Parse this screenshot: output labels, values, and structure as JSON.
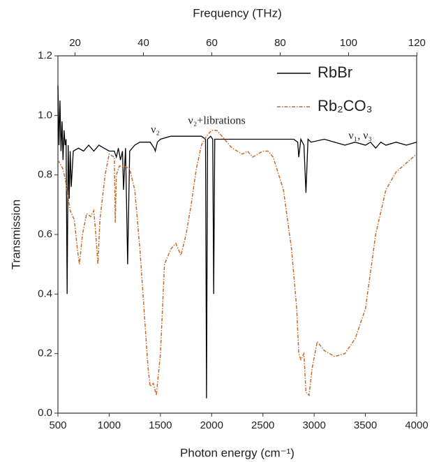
{
  "chart_data": {
    "type": "line",
    "xlabel": "Photon energy (cm⁻¹)",
    "ylabel": "Transmission",
    "x2label": "Frequency (THz)",
    "xlim": [
      500,
      4000
    ],
    "xticks": [
      500,
      1000,
      1500,
      2000,
      2500,
      3000,
      3500,
      4000
    ],
    "ylim": [
      0,
      1.2
    ],
    "yticks": [
      {
        "value": 0,
        "label": "0.0"
      },
      {
        "value": 0.2,
        "label": "0.2"
      },
      {
        "value": 0.4,
        "label": "0.4"
      },
      {
        "value": 0.6,
        "label": "0.6"
      },
      {
        "value": 0.8,
        "label": "0.8"
      },
      {
        "value": 1.0,
        "label": "1.0"
      },
      {
        "value": 1.2,
        "label": "1.2"
      }
    ],
    "x2lim": [
      14.99,
      119.92
    ],
    "x2ticks": [
      20,
      40,
      60,
      80,
      100,
      120
    ],
    "legend": "top-right",
    "annotations": [
      {
        "text": "ν₂",
        "x": 1450,
        "y": 0.95
      },
      {
        "text": "ν₂+librations",
        "x": 2050,
        "y": 0.98
      },
      {
        "text": "ν₁, ν₃",
        "x": 3450,
        "y": 0.93
      }
    ],
    "series": [
      {
        "name": "RbBr",
        "color": "#000000",
        "dash": "solid",
        "x": [
          500,
          510,
          520,
          530,
          540,
          550,
          560,
          570,
          580,
          590,
          600,
          610,
          620,
          630,
          650,
          700,
          750,
          800,
          850,
          900,
          950,
          1000,
          1050,
          1070,
          1090,
          1110,
          1130,
          1140,
          1160,
          1180,
          1200,
          1250,
          1300,
          1350,
          1400,
          1440,
          1450,
          1470,
          1500,
          1600,
          1700,
          1800,
          1900,
          1940,
          1950,
          1960,
          1990,
          2010,
          2020,
          2030,
          2060,
          2200,
          2400,
          2600,
          2800,
          2840,
          2850,
          2870,
          2900,
          2920,
          2940,
          2970,
          3100,
          3200,
          3300,
          3400,
          3500,
          3550,
          3600,
          3650,
          3700,
          3800,
          3900,
          4000
        ],
        "values": [
          1.1,
          0.9,
          1.05,
          0.88,
          0.98,
          0.85,
          0.95,
          0.9,
          0.92,
          0.4,
          0.9,
          0.72,
          0.88,
          0.76,
          0.88,
          0.89,
          0.88,
          0.9,
          0.88,
          0.9,
          0.89,
          0.88,
          0.88,
          0.86,
          0.89,
          0.85,
          0.88,
          0.75,
          0.89,
          0.5,
          0.88,
          0.9,
          0.91,
          0.91,
          0.91,
          0.89,
          0.88,
          0.91,
          0.92,
          0.93,
          0.93,
          0.93,
          0.93,
          0.92,
          0.05,
          0.92,
          0.93,
          0.92,
          0.4,
          0.92,
          0.92,
          0.92,
          0.92,
          0.92,
          0.92,
          0.91,
          0.86,
          0.92,
          0.9,
          0.74,
          0.92,
          0.91,
          0.92,
          0.91,
          0.9,
          0.91,
          0.9,
          0.91,
          0.89,
          0.91,
          0.9,
          0.91,
          0.9,
          0.91
        ]
      },
      {
        "name": "Rb₂CO₃",
        "color": "#c8692a",
        "dash": "dashdot",
        "x": [
          500,
          550,
          580,
          620,
          660,
          690,
          710,
          740,
          780,
          820,
          850,
          870,
          890,
          910,
          960,
          1000,
          1050,
          1060,
          1070,
          1100,
          1150,
          1200,
          1250,
          1300,
          1350,
          1380,
          1400,
          1430,
          1460,
          1500,
          1540,
          1600,
          1650,
          1700,
          1750,
          1800,
          1850,
          1900,
          1950,
          2000,
          2050,
          2100,
          2200,
          2300,
          2350,
          2400,
          2500,
          2550,
          2600,
          2700,
          2780,
          2830,
          2850,
          2870,
          2900,
          2920,
          2950,
          2980,
          3030,
          3100,
          3200,
          3300,
          3400,
          3500,
          3600,
          3700,
          3800,
          3900,
          4000
        ],
        "values": [
          0.85,
          0.82,
          0.77,
          0.68,
          0.65,
          0.55,
          0.5,
          0.6,
          0.67,
          0.66,
          0.68,
          0.6,
          0.5,
          0.65,
          0.8,
          0.87,
          0.86,
          0.64,
          0.8,
          0.83,
          0.83,
          0.82,
          0.75,
          0.55,
          0.3,
          0.15,
          0.09,
          0.1,
          0.06,
          0.2,
          0.5,
          0.55,
          0.57,
          0.53,
          0.6,
          0.7,
          0.82,
          0.9,
          0.93,
          0.95,
          0.95,
          0.93,
          0.89,
          0.87,
          0.88,
          0.86,
          0.88,
          0.88,
          0.86,
          0.75,
          0.55,
          0.35,
          0.2,
          0.18,
          0.2,
          0.07,
          0.06,
          0.15,
          0.24,
          0.21,
          0.19,
          0.2,
          0.25,
          0.35,
          0.6,
          0.75,
          0.81,
          0.84,
          0.87
        ]
      }
    ]
  }
}
